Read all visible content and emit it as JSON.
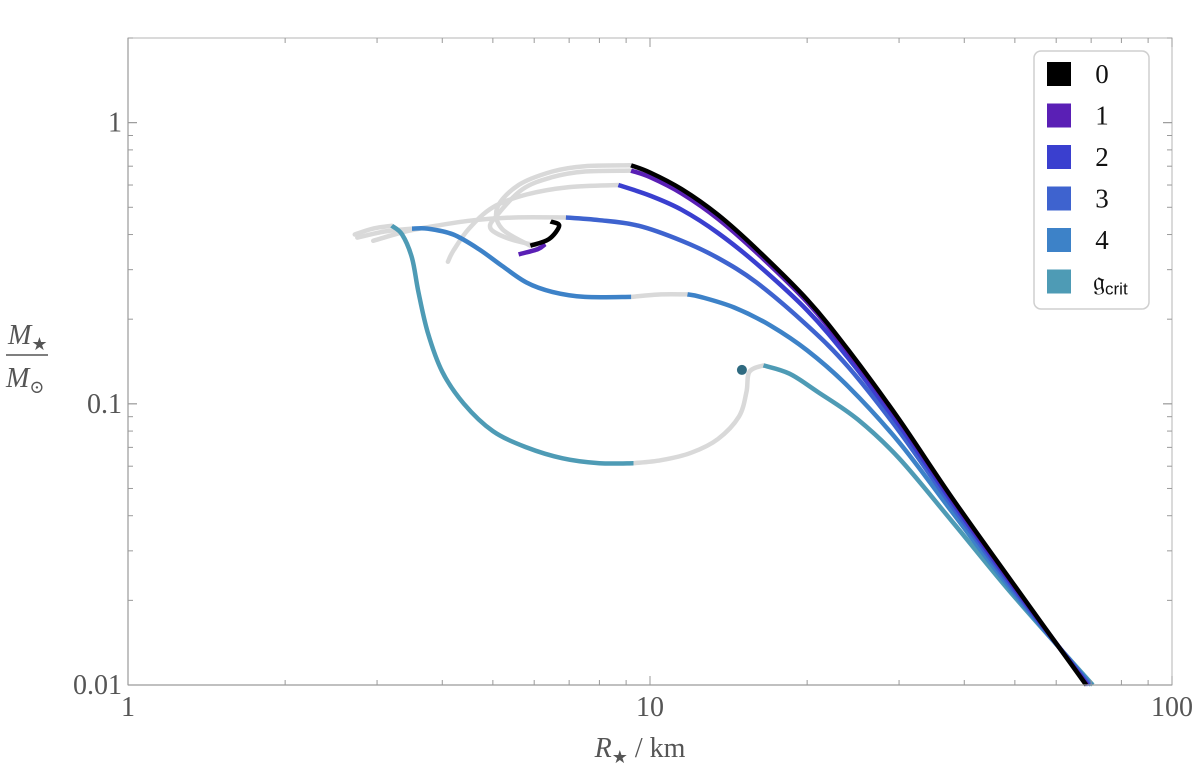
{
  "chart_data": {
    "type": "line",
    "x_scale": "log",
    "y_scale": "log",
    "xlim": [
      1,
      100
    ],
    "ylim": [
      0.01,
      2
    ],
    "x_ticks": [
      {
        "value": 1,
        "label": "1"
      },
      {
        "value": 10,
        "label": "10"
      },
      {
        "value": 100,
        "label": "100"
      }
    ],
    "y_ticks": [
      {
        "value": 0.01,
        "label": "0.01"
      },
      {
        "value": 0.1,
        "label": "0.1"
      },
      {
        "value": 1,
        "label": "1"
      }
    ],
    "xlabel": {
      "symbol": "R",
      "sub": "★",
      "rest": " / km"
    },
    "ylabel": {
      "num_symbol": "M",
      "num_sub": "★",
      "den_symbol": "M",
      "den_sub": "⊙"
    },
    "legend": {
      "position": "top-right",
      "entries": [
        {
          "label": "0",
          "color": "#000000"
        },
        {
          "label": "1",
          "color": "#5a1fb5"
        },
        {
          "label": "2",
          "color": "#3a3fcf"
        },
        {
          "label": "3",
          "color": "#3e63cf"
        },
        {
          "label": "4",
          "color": "#3d82c8"
        },
        {
          "label": "𝔤",
          "sub": "crit",
          "color": "#4e9bb5"
        }
      ]
    },
    "unstable_color": "#d9d9d9",
    "series": [
      {
        "key": "0",
        "color": "#000000",
        "stable": [
          [
            68.5,
            0.01
          ],
          [
            50,
            0.0225
          ],
          [
            38,
            0.046
          ],
          [
            30,
            0.088
          ],
          [
            24,
            0.155
          ],
          [
            20,
            0.235
          ],
          [
            16,
            0.355
          ],
          [
            13.5,
            0.47
          ],
          [
            11.5,
            0.58
          ],
          [
            10,
            0.665
          ],
          [
            9.2,
            0.705
          ]
        ],
        "unstable": [
          [
            9.2,
            0.705
          ],
          [
            7.5,
            0.7
          ],
          [
            6.5,
            0.67
          ],
          [
            5.6,
            0.6
          ],
          [
            5.1,
            0.5
          ],
          [
            5.2,
            0.42
          ],
          [
            5.9,
            0.365
          ]
        ],
        "extra": [
          [
            5.9,
            0.365
          ],
          [
            6.4,
            0.385
          ],
          [
            6.7,
            0.43
          ],
          [
            6.45,
            0.445
          ]
        ]
      },
      {
        "key": "1",
        "color": "#5a1fb5",
        "stable": [
          [
            68.7,
            0.01
          ],
          [
            50,
            0.0223
          ],
          [
            38,
            0.0455
          ],
          [
            30,
            0.087
          ],
          [
            24,
            0.152
          ],
          [
            20,
            0.23
          ],
          [
            16,
            0.345
          ],
          [
            13.5,
            0.455
          ],
          [
            11.5,
            0.56
          ],
          [
            10,
            0.64
          ],
          [
            9.2,
            0.675
          ]
        ],
        "unstable": [
          [
            9.2,
            0.675
          ],
          [
            7.5,
            0.67
          ],
          [
            6.5,
            0.64
          ],
          [
            5.7,
            0.58
          ],
          [
            5.1,
            0.47
          ],
          [
            4.95,
            0.42
          ],
          [
            5.4,
            0.385
          ],
          [
            6.1,
            0.365
          ]
        ],
        "extra": [
          [
            5.6,
            0.34
          ],
          [
            6.1,
            0.355
          ],
          [
            6.3,
            0.37
          ]
        ]
      },
      {
        "key": "2",
        "color": "#3a3fcf",
        "stable": [
          [
            69,
            0.01
          ],
          [
            50,
            0.022
          ],
          [
            38,
            0.0445
          ],
          [
            30,
            0.084
          ],
          [
            24,
            0.145
          ],
          [
            20,
            0.215
          ],
          [
            16,
            0.315
          ],
          [
            13.5,
            0.405
          ],
          [
            11.5,
            0.49
          ],
          [
            10,
            0.55
          ],
          [
            8.7,
            0.6
          ]
        ],
        "unstable": [
          [
            8.7,
            0.6
          ],
          [
            7,
            0.59
          ],
          [
            5.8,
            0.555
          ],
          [
            5,
            0.5
          ],
          [
            4.5,
            0.42
          ],
          [
            4.2,
            0.35
          ],
          [
            4.1,
            0.32
          ]
        ]
      },
      {
        "key": "3",
        "color": "#3e63cf",
        "stable": [
          [
            69.5,
            0.01
          ],
          [
            50,
            0.0215
          ],
          [
            38,
            0.043
          ],
          [
            30,
            0.08
          ],
          [
            24,
            0.135
          ],
          [
            20,
            0.19
          ],
          [
            16,
            0.27
          ],
          [
            13.5,
            0.33
          ],
          [
            11.5,
            0.38
          ],
          [
            9.5,
            0.43
          ],
          [
            8,
            0.45
          ],
          [
            6.9,
            0.46
          ]
        ],
        "unstable": [
          [
            6.9,
            0.46
          ],
          [
            5.5,
            0.46
          ],
          [
            4.6,
            0.45
          ],
          [
            3.9,
            0.43
          ],
          [
            3.4,
            0.41
          ],
          [
            2.95,
            0.38
          ]
        ]
      },
      {
        "key": "4",
        "color": "#3d82c8",
        "stable": [
          [
            70,
            0.01
          ],
          [
            50,
            0.021
          ],
          [
            38,
            0.041
          ],
          [
            30,
            0.073
          ],
          [
            24,
            0.115
          ],
          [
            20,
            0.155
          ],
          [
            17,
            0.19
          ],
          [
            14.5,
            0.22
          ],
          [
            12.5,
            0.24
          ],
          [
            11.8,
            0.245
          ]
        ],
        "unstable": [
          [
            11.8,
            0.245
          ],
          [
            10.5,
            0.245
          ],
          [
            9.2,
            0.24
          ]
        ],
        "stable2": [
          [
            9.2,
            0.24
          ],
          [
            7.5,
            0.24
          ],
          [
            6.5,
            0.25
          ],
          [
            5.8,
            0.27
          ],
          [
            5.2,
            0.31
          ],
          [
            4.7,
            0.355
          ],
          [
            4.2,
            0.4
          ],
          [
            3.75,
            0.42
          ],
          [
            3.5,
            0.42
          ]
        ],
        "unstable2": [
          [
            3.5,
            0.42
          ],
          [
            3.1,
            0.41
          ],
          [
            2.75,
            0.39
          ]
        ]
      },
      {
        "key": "crit",
        "color": "#4e9bb5",
        "stable": [
          [
            70.5,
            0.01
          ],
          [
            50,
            0.0205
          ],
          [
            38,
            0.038
          ],
          [
            30,
            0.064
          ],
          [
            25,
            0.088
          ],
          [
            21,
            0.11
          ],
          [
            18.5,
            0.128
          ],
          [
            16.5,
            0.137
          ]
        ],
        "unstable": [
          [
            16.5,
            0.137
          ],
          [
            15.5,
            0.13
          ],
          [
            15.3,
            0.11
          ],
          [
            14.8,
            0.09
          ],
          [
            13.5,
            0.075
          ],
          [
            12,
            0.067
          ],
          [
            10.5,
            0.063
          ],
          [
            9.3,
            0.0615
          ]
        ],
        "stable2": [
          [
            9.3,
            0.0615
          ],
          [
            8,
            0.0615
          ],
          [
            6.8,
            0.064
          ],
          [
            5.8,
            0.07
          ],
          [
            5,
            0.08
          ],
          [
            4.4,
            0.1
          ],
          [
            4,
            0.13
          ],
          [
            3.75,
            0.18
          ],
          [
            3.6,
            0.25
          ],
          [
            3.5,
            0.33
          ],
          [
            3.35,
            0.4
          ],
          [
            3.2,
            0.43
          ]
        ],
        "unstable2": [
          [
            3.2,
            0.43
          ],
          [
            2.95,
            0.42
          ],
          [
            2.72,
            0.4
          ]
        ],
        "endpoint": [
          15,
          0.132
        ],
        "endpoint_color": "#2f6a80"
      }
    ]
  }
}
